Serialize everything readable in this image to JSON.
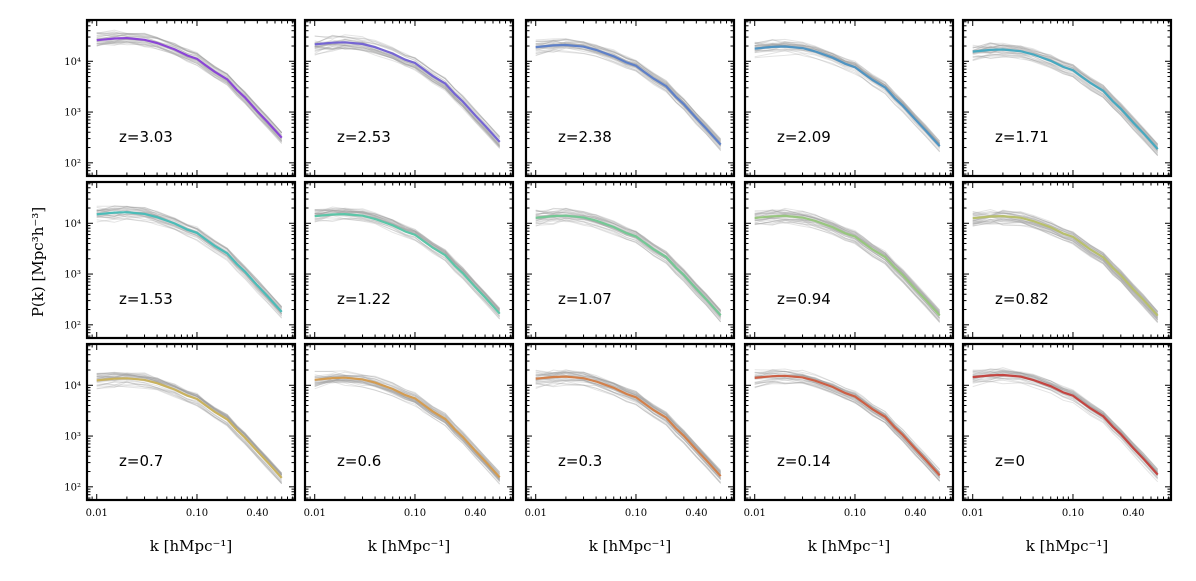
{
  "figure": {
    "ylabel": "P(k) [Mpc³h⁻³]",
    "xlabel": "k [hMpc⁻¹]",
    "x_tick_labels": [
      "0.01",
      "0.10",
      "0.40"
    ],
    "y_tick_labels": [
      "10⁴",
      "10³",
      "10²"
    ]
  },
  "chart_data": {
    "type": "line",
    "layout": "3x5 grid of small-multiple panels",
    "xscale": "log",
    "yscale": "log",
    "xlim": [
      0.008,
      0.95
    ],
    "ylim": [
      55,
      65000
    ],
    "xticks": [
      0.01,
      0.1,
      0.4
    ],
    "yticks": [
      100,
      1000,
      10000
    ],
    "k": [
      0.01,
      0.015,
      0.02,
      0.03,
      0.04,
      0.06,
      0.08,
      0.1,
      0.12,
      0.15,
      0.2,
      0.25,
      0.3,
      0.4,
      0.5,
      0.7
    ],
    "shape": [
      1.0,
      1.08,
      1.1,
      1.02,
      0.88,
      0.66,
      0.5,
      0.43,
      0.33,
      0.24,
      0.17,
      0.105,
      0.075,
      0.04,
      0.025,
      0.012
    ],
    "panels": [
      {
        "label": "z=3.03",
        "color": "#8b45d6",
        "amp": 26000
      },
      {
        "label": "z=2.53",
        "color": "#7565d3",
        "amp": 21500
      },
      {
        "label": "z=2.38",
        "color": "#5e80c8",
        "amp": 19000
      },
      {
        "label": "z=2.09",
        "color": "#4f94c2",
        "amp": 17800
      },
      {
        "label": "z=1.71",
        "color": "#47a9c0",
        "amp": 15500
      },
      {
        "label": "z=1.53",
        "color": "#4bbcb8",
        "amp": 15000
      },
      {
        "label": "z=1.22",
        "color": "#5cc6a8",
        "amp": 13800
      },
      {
        "label": "z=1.07",
        "color": "#74c895",
        "amp": 12800
      },
      {
        "label": "z=0.94",
        "color": "#98c67f",
        "amp": 12700
      },
      {
        "label": "z=0.82",
        "color": "#b8bf6d",
        "amp": 12600
      },
      {
        "label": "z=0.7",
        "color": "#c9b25e",
        "amp": 12500
      },
      {
        "label": "z=0.6",
        "color": "#d39c52",
        "amp": 12800
      },
      {
        "label": "z=0.3",
        "color": "#d2804b",
        "amp": 13500
      },
      {
        "label": "z=0.14",
        "color": "#cc6046",
        "amp": 14000
      },
      {
        "label": "z=0",
        "color": "#c44541",
        "amp": 14500
      }
    ],
    "background_ensemble": {
      "color": "#9e9e9e",
      "count": 30
    }
  }
}
